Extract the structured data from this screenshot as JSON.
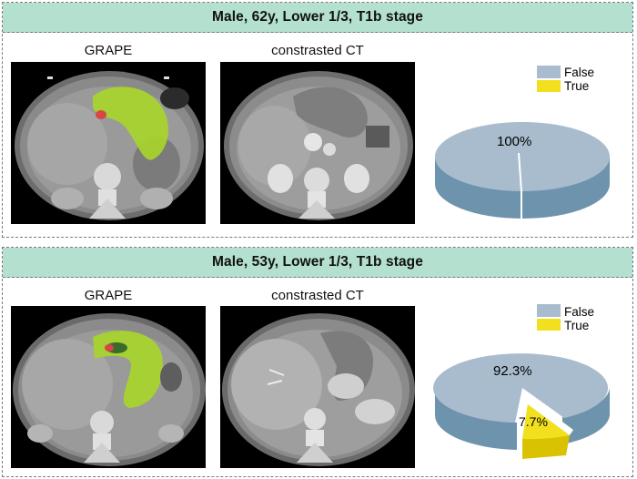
{
  "cases": [
    {
      "title": "Male, 62y, Lower 1/3, T1b stage",
      "left_label": "GRAPE",
      "right_label": "constrasted CT",
      "legend": [
        {
          "label": "False",
          "color": "#a9bccd"
        },
        {
          "label": "True",
          "color": "#f2e01e"
        }
      ],
      "pie": {
        "false_pct": 100,
        "true_pct": 0,
        "false_label": "100%",
        "true_label": ""
      }
    },
    {
      "title": "Male, 53y, Lower 1/3, T1b stage",
      "left_label": "GRAPE",
      "right_label": "constrasted CT",
      "legend": [
        {
          "label": "False",
          "color": "#a9bccd"
        },
        {
          "label": "True",
          "color": "#f2e01e"
        }
      ],
      "pie": {
        "false_pct": 92.3,
        "true_pct": 7.7,
        "false_label": "92.3%",
        "true_label": "7.7%"
      }
    }
  ]
}
